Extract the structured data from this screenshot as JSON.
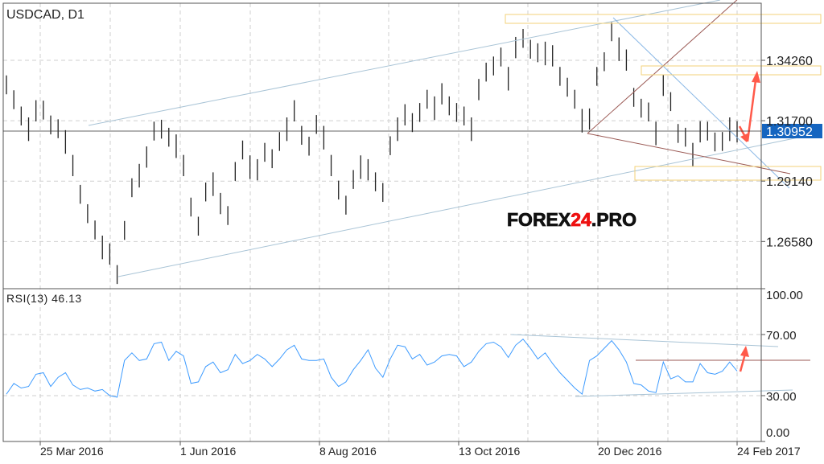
{
  "chart_data": [
    {
      "type": "ohlc-bar",
      "title": "USDCAD, D1",
      "y_ticks": [
        "1.34260",
        "1.31700",
        "1.29140",
        "1.26580"
      ],
      "ylim": [
        1.2458,
        1.3668
      ],
      "last_price": "1.30952",
      "grid": true,
      "x_ticks": [
        "25 Mar 2016",
        "1 Jun 2016",
        "8 Aug 2016",
        "13 Oct 2016",
        "20 Dec 2016",
        "24 Feb 2017"
      ],
      "bars_high_low": [
        [
          1.3362,
          1.3282
        ],
        [
          1.3299,
          1.3219
        ],
        [
          1.323,
          1.315
        ],
        [
          1.3184,
          1.3084
        ],
        [
          1.3257,
          1.3167
        ],
        [
          1.3255,
          1.3175
        ],
        [
          1.3192,
          1.3112
        ],
        [
          1.3176,
          1.3096
        ],
        [
          1.313,
          1.303
        ],
        [
          1.3025,
          1.2935
        ],
        [
          1.2898,
          1.2818
        ],
        [
          1.2816,
          1.2736
        ],
        [
          1.2747,
          1.2667
        ],
        [
          1.2683,
          1.2583
        ],
        [
          1.265,
          1.256
        ],
        [
          1.2558,
          1.2478
        ],
        [
          1.2745,
          1.2665
        ],
        [
          1.2926,
          1.2846
        ],
        [
          1.2987,
          1.2887
        ],
        [
          1.3061,
          1.2971
        ],
        [
          1.3166,
          1.3086
        ],
        [
          1.3174,
          1.3094
        ],
        [
          1.314,
          1.306
        ],
        [
          1.3112,
          1.3012
        ],
        [
          1.3025,
          1.2935
        ],
        [
          1.2844,
          1.2764
        ],
        [
          1.2763,
          1.2683
        ],
        [
          1.2908,
          1.2828
        ],
        [
          1.2951,
          1.2851
        ],
        [
          1.2864,
          1.2774
        ],
        [
          1.2808,
          1.2728
        ],
        [
          1.2995,
          1.2915
        ],
        [
          1.3086,
          1.3006
        ],
        [
          1.3023,
          1.2923
        ],
        [
          1.3007,
          1.2917
        ],
        [
          1.3076,
          1.2996
        ],
        [
          1.3049,
          1.2969
        ],
        [
          1.3122,
          1.3042
        ],
        [
          1.3184,
          1.3084
        ],
        [
          1.3257,
          1.3167
        ],
        [
          1.3148,
          1.3068
        ],
        [
          1.3102,
          1.3022
        ],
        [
          1.3194,
          1.3114
        ],
        [
          1.3148,
          1.3048
        ],
        [
          1.3025,
          1.2935
        ],
        [
          1.2916,
          1.2836
        ],
        [
          1.2852,
          1.2772
        ],
        [
          1.2961,
          1.2881
        ],
        [
          1.3023,
          1.2923
        ],
        [
          1.3007,
          1.2917
        ],
        [
          1.2951,
          1.2871
        ],
        [
          1.2906,
          1.2826
        ],
        [
          1.3104,
          1.3024
        ],
        [
          1.3184,
          1.3084
        ],
        [
          1.324,
          1.315
        ],
        [
          1.3202,
          1.3122
        ],
        [
          1.3245,
          1.3165
        ],
        [
          1.3301,
          1.3221
        ],
        [
          1.3273,
          1.3173
        ],
        [
          1.3329,
          1.3239
        ],
        [
          1.3273,
          1.3193
        ],
        [
          1.3245,
          1.3165
        ],
        [
          1.323,
          1.315
        ],
        [
          1.3184,
          1.3084
        ],
        [
          1.3347,
          1.3257
        ],
        [
          1.3416,
          1.3336
        ],
        [
          1.3442,
          1.3362
        ],
        [
          1.348,
          1.34
        ],
        [
          1.3398,
          1.3298
        ],
        [
          1.3525,
          1.3435
        ],
        [
          1.3559,
          1.3479
        ],
        [
          1.3513,
          1.3433
        ],
        [
          1.3498,
          1.3418
        ],
        [
          1.3505,
          1.3405
        ],
        [
          1.349,
          1.34
        ],
        [
          1.3398,
          1.3318
        ],
        [
          1.3352,
          1.3272
        ],
        [
          1.3301,
          1.3221
        ],
        [
          1.322,
          1.312
        ],
        [
          1.3222,
          1.3132
        ],
        [
          1.3398,
          1.3318
        ],
        [
          1.346,
          1.338
        ],
        [
          1.3587,
          1.3507
        ],
        [
          1.3523,
          1.3423
        ],
        [
          1.3472,
          1.3382
        ],
        [
          1.3309,
          1.3229
        ],
        [
          1.3263,
          1.3183
        ],
        [
          1.3247,
          1.3167
        ],
        [
          1.3166,
          1.3066
        ],
        [
          1.3365,
          1.3275
        ],
        [
          1.3291,
          1.3211
        ],
        [
          1.3156,
          1.3076
        ],
        [
          1.314,
          1.306
        ],
        [
          1.3076,
          1.2976
        ],
        [
          1.3168,
          1.3078
        ],
        [
          1.3166,
          1.3086
        ],
        [
          1.312,
          1.304
        ],
        [
          1.3122,
          1.3042
        ],
        [
          1.3184,
          1.3084
        ],
        [
          1.3168,
          1.3078
        ]
      ],
      "colors": {
        "bars": "#222222",
        "last_price_badge": "#1565c0",
        "channel": "#a9c4d6",
        "trend_blue": "#8ab8e6",
        "trend_brown": "#9b5a55",
        "zones": "#f3d27a",
        "arrows": "#ff5a4a"
      }
    },
    {
      "type": "line",
      "title": "RSI(13) 46.13",
      "y_ticks": [
        "100.00",
        "70.00",
        "30.00",
        "0.00"
      ],
      "ylim": [
        0,
        100
      ],
      "levels": [
        70,
        30
      ],
      "values": [
        31,
        38,
        35,
        36,
        44,
        45,
        36,
        42,
        45,
        37,
        34,
        35,
        33,
        34,
        30,
        29,
        53,
        58,
        53,
        54,
        64,
        65,
        53,
        59,
        56,
        38,
        39,
        49,
        52,
        45,
        47,
        57,
        51,
        53,
        57,
        54,
        49,
        54,
        60,
        63,
        54,
        53,
        53,
        54,
        42,
        36,
        39,
        47,
        53,
        60,
        48,
        42,
        54,
        63,
        62,
        54,
        57,
        50,
        52,
        56,
        57,
        56,
        49,
        52,
        59,
        64,
        65,
        62,
        55,
        63,
        67,
        61,
        54,
        58,
        51,
        45,
        40,
        35,
        31,
        53,
        56,
        61,
        66,
        60,
        52,
        38,
        37,
        33,
        32,
        52,
        41,
        43,
        39,
        39,
        51,
        45,
        44,
        46,
        52,
        46.13
      ],
      "color": "#3d9bff"
    }
  ],
  "logo": {
    "part1": "FOREX",
    "part2": "24",
    "part3": ".PRO"
  }
}
